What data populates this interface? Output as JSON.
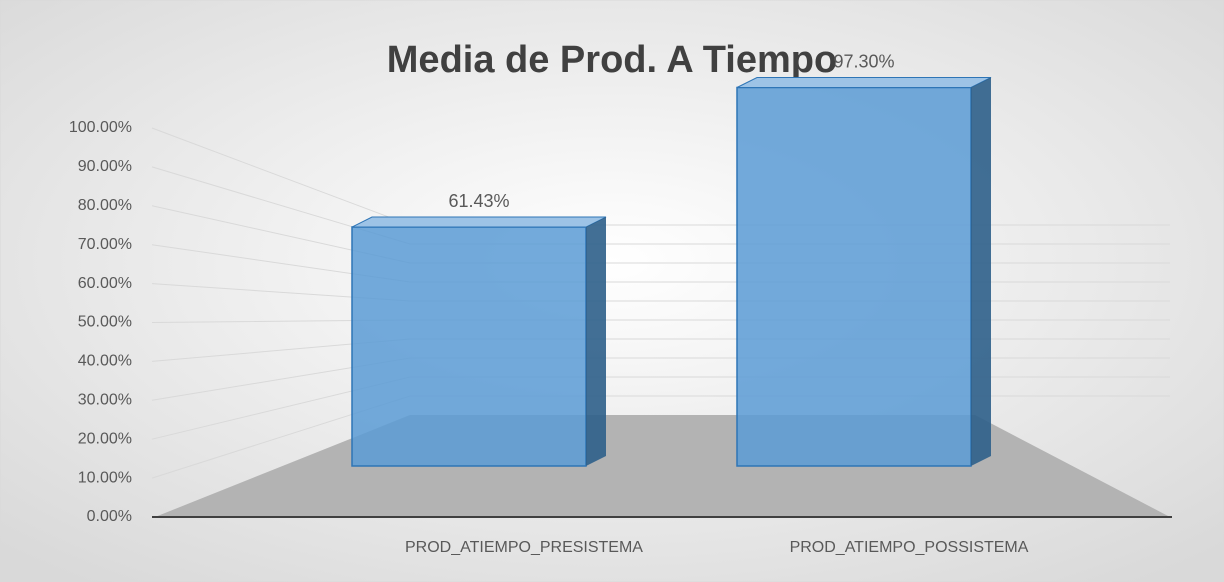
{
  "chart_data": {
    "type": "bar3d",
    "title": "Media de Prod. A Tiempo",
    "categories": [
      "PROD_ATIEMPO_PRESISTEMA",
      "PROD_ATIEMPO_POSSISTEMA"
    ],
    "values": [
      61.43,
      97.3
    ],
    "value_labels": [
      "61.43%",
      "97.30%"
    ],
    "color": "#5b9bd5",
    "ylim": [
      0,
      100
    ],
    "yticks": [
      {
        "value": 0,
        "label": "0.00%"
      },
      {
        "value": 10,
        "label": "10.00%"
      },
      {
        "value": 20,
        "label": "20.00%"
      },
      {
        "value": 30,
        "label": "30.00%"
      },
      {
        "value": 40,
        "label": "40.00%"
      },
      {
        "value": 50,
        "label": "50.00%"
      },
      {
        "value": 60,
        "label": "60.00%"
      },
      {
        "value": 70,
        "label": "70.00%"
      },
      {
        "value": 80,
        "label": "80.00%"
      },
      {
        "value": 90,
        "label": "90.00%"
      },
      {
        "value": 100,
        "label": "100.00%"
      }
    ],
    "grid": true
  }
}
